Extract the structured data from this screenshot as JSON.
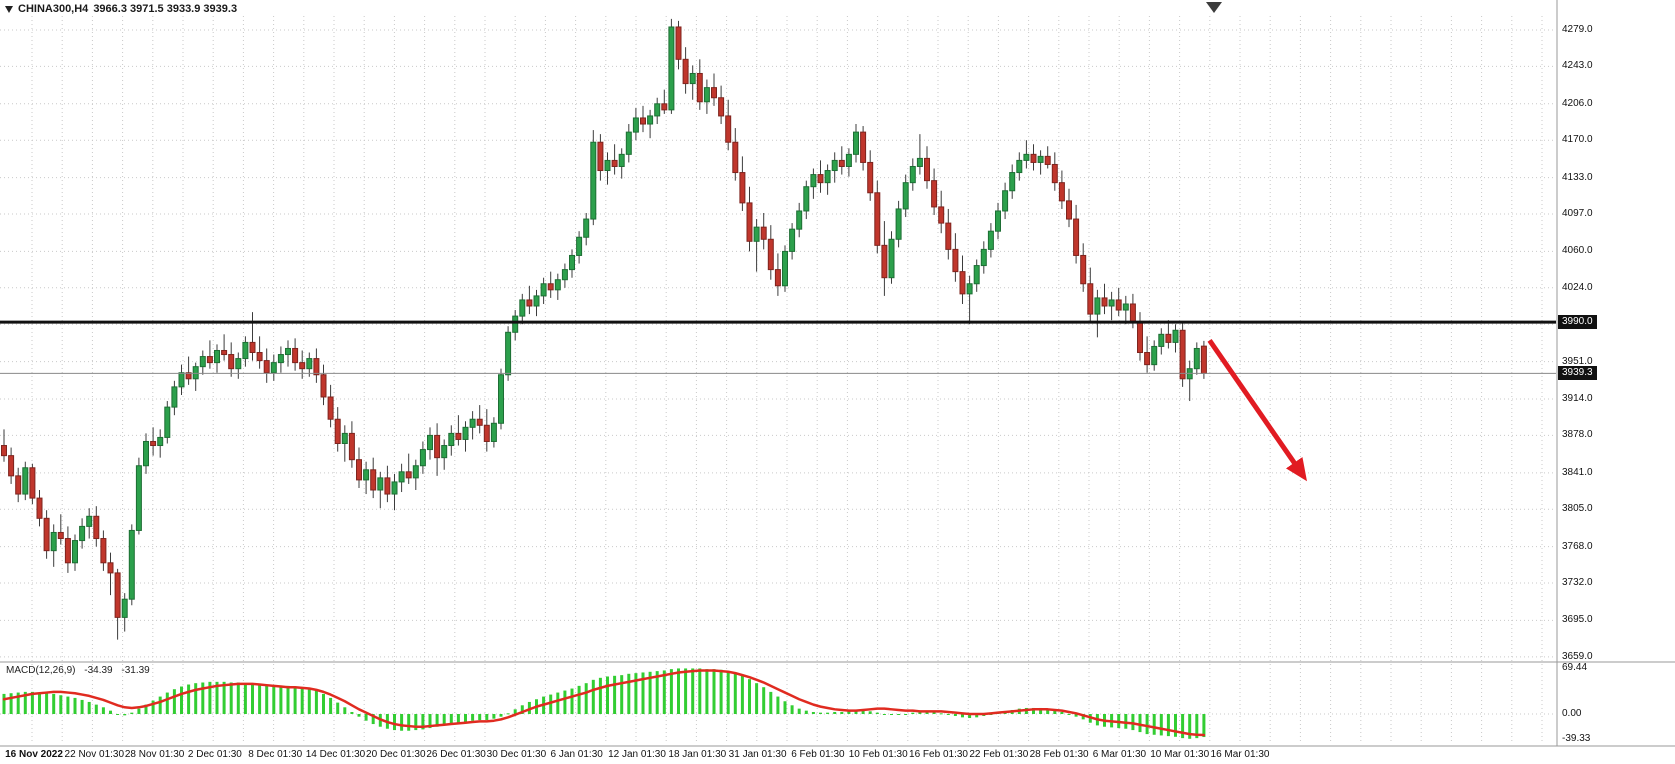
{
  "header": {
    "symbol_timeframe": "CHINA300,H4",
    "ohlc": "3966.3 3971.5 3933.9 3939.3"
  },
  "chart_data": {
    "type": "candlestick",
    "title": "CHINA300,H4",
    "timeframe": "H4",
    "ohlc_display": {
      "open": 3966.3,
      "high": 3971.5,
      "low": 3933.9,
      "close": 3939.3
    },
    "colors": {
      "background": "#ffffff",
      "grid": "#c9c9c9",
      "bull": "#2ca04c",
      "bull_border": "#1d6e34",
      "bear": "#c0362c",
      "bear_border": "#7e241e",
      "wick": "#3c3c3c",
      "hline": "#111111",
      "bid_line": "#8a8a8a",
      "macd_histogram": "#32cd32",
      "macd_signal": "#e02b20",
      "arrow": "#e11b22",
      "axis_text": "#111111",
      "badge_bg": "#111111",
      "badge_text": "#ffffff",
      "separator": "#9a9a9a",
      "shift_marker": "#3c3c3c"
    },
    "price_axis": {
      "grid_values": [
        4279,
        4243,
        4206,
        4170,
        4133,
        4097,
        4060,
        4024,
        3988,
        3951,
        3914,
        3878,
        3841,
        3805,
        3768,
        3732,
        3695,
        3659
      ],
      "labels": [
        {
          "value": 4279,
          "text": "4279.0"
        },
        {
          "value": 4243,
          "text": "4243.0"
        },
        {
          "value": 4206,
          "text": "4206.0"
        },
        {
          "value": 4170,
          "text": "4170.0"
        },
        {
          "value": 4133,
          "text": "4133.0"
        },
        {
          "value": 4097,
          "text": "4097.0"
        },
        {
          "value": 4060,
          "text": "4060.0"
        },
        {
          "value": 4024,
          "text": "4024.0"
        },
        {
          "value": 3951,
          "text": "3951.0"
        },
        {
          "value": 3914,
          "text": "3914.0"
        },
        {
          "value": 3878,
          "text": "3878.0"
        },
        {
          "value": 3841,
          "text": "3841.0"
        },
        {
          "value": 3805,
          "text": "3805.0"
        },
        {
          "value": 3768,
          "text": "3768.0"
        },
        {
          "value": 3732,
          "text": "3732.0"
        },
        {
          "value": 3695,
          "text": "3695.0"
        },
        {
          "value": 3659,
          "text": "3659.0"
        }
      ],
      "top": 4279.0,
      "bottom": 3659.0
    },
    "hline": {
      "value": 3990.0,
      "label": "3990.0"
    },
    "bid": {
      "value": 3939.3,
      "label": "3939.3"
    },
    "time_labels": [
      "16 Nov 2022",
      "22 Nov 01:30",
      "28 Nov 01:30",
      "2 Dec 01:30",
      "8 Dec 01:30",
      "14 Dec 01:30",
      "20 Dec 01:30",
      "26 Dec 01:30",
      "30 Dec 01:30",
      "6 Jan 01:30",
      "12 Jan 01:30",
      "18 Jan 01:30",
      "31 Jan 01:30",
      "6 Feb 01:30",
      "10 Feb 01:30",
      "16 Feb 01:30",
      "22 Feb 01:30",
      "28 Feb 01:30",
      "6 Mar 01:30",
      "10 Mar 01:30",
      "16 Mar 01:30"
    ],
    "candles": [
      [
        3868,
        3884,
        3852,
        3858
      ],
      [
        3858,
        3866,
        3830,
        3838
      ],
      [
        3838,
        3846,
        3812,
        3820
      ],
      [
        3820,
        3852,
        3814,
        3846
      ],
      [
        3846,
        3850,
        3810,
        3816
      ],
      [
        3816,
        3824,
        3788,
        3796
      ],
      [
        3796,
        3804,
        3756,
        3764
      ],
      [
        3764,
        3790,
        3748,
        3782
      ],
      [
        3782,
        3800,
        3770,
        3776
      ],
      [
        3776,
        3788,
        3742,
        3752
      ],
      [
        3752,
        3780,
        3744,
        3774
      ],
      [
        3774,
        3796,
        3766,
        3788
      ],
      [
        3788,
        3806,
        3776,
        3798
      ],
      [
        3798,
        3808,
        3768,
        3776
      ],
      [
        3776,
        3784,
        3744,
        3752
      ],
      [
        3752,
        3762,
        3720,
        3742
      ],
      [
        3742,
        3746,
        3676,
        3698
      ],
      [
        3698,
        3722,
        3684,
        3716
      ],
      [
        3716,
        3790,
        3710,
        3784
      ],
      [
        3784,
        3856,
        3780,
        3848
      ],
      [
        3848,
        3880,
        3840,
        3872
      ],
      [
        3872,
        3886,
        3858,
        3868
      ],
      [
        3868,
        3884,
        3856,
        3876
      ],
      [
        3876,
        3912,
        3870,
        3906
      ],
      [
        3906,
        3932,
        3898,
        3926
      ],
      [
        3926,
        3948,
        3918,
        3940
      ],
      [
        3940,
        3956,
        3928,
        3934
      ],
      [
        3934,
        3950,
        3922,
        3946
      ],
      [
        3946,
        3962,
        3938,
        3956
      ],
      [
        3956,
        3972,
        3944,
        3950
      ],
      [
        3950,
        3968,
        3940,
        3962
      ],
      [
        3962,
        3978,
        3952,
        3958
      ],
      [
        3958,
        3970,
        3936,
        3944
      ],
      [
        3944,
        3960,
        3934,
        3954
      ],
      [
        3954,
        3976,
        3946,
        3970
      ],
      [
        3970,
        4000,
        3952,
        3960
      ],
      [
        3960,
        3976,
        3944,
        3952
      ],
      [
        3952,
        3964,
        3930,
        3940
      ],
      [
        3940,
        3958,
        3932,
        3950
      ],
      [
        3950,
        3966,
        3940,
        3958
      ],
      [
        3958,
        3972,
        3946,
        3964
      ],
      [
        3964,
        3974,
        3942,
        3950
      ],
      [
        3950,
        3962,
        3934,
        3944
      ],
      [
        3944,
        3960,
        3936,
        3954
      ],
      [
        3954,
        3964,
        3930,
        3938
      ],
      [
        3938,
        3948,
        3908,
        3916
      ],
      [
        3916,
        3928,
        3886,
        3894
      ],
      [
        3894,
        3906,
        3862,
        3870
      ],
      [
        3870,
        3888,
        3852,
        3880
      ],
      [
        3880,
        3892,
        3846,
        3854
      ],
      [
        3854,
        3866,
        3826,
        3834
      ],
      [
        3834,
        3852,
        3820,
        3844
      ],
      [
        3844,
        3856,
        3816,
        3824
      ],
      [
        3824,
        3842,
        3806,
        3836
      ],
      [
        3836,
        3848,
        3812,
        3820
      ],
      [
        3820,
        3840,
        3804,
        3832
      ],
      [
        3832,
        3850,
        3822,
        3842
      ],
      [
        3842,
        3860,
        3830,
        3836
      ],
      [
        3836,
        3854,
        3824,
        3848
      ],
      [
        3848,
        3872,
        3840,
        3864
      ],
      [
        3864,
        3886,
        3854,
        3878
      ],
      [
        3878,
        3890,
        3838,
        3856
      ],
      [
        3856,
        3874,
        3844,
        3868
      ],
      [
        3868,
        3888,
        3858,
        3880
      ],
      [
        3880,
        3898,
        3868,
        3874
      ],
      [
        3874,
        3892,
        3862,
        3886
      ],
      [
        3886,
        3902,
        3874,
        3894
      ],
      [
        3894,
        3908,
        3880,
        3888
      ],
      [
        3888,
        3904,
        3862,
        3872
      ],
      [
        3872,
        3896,
        3866,
        3890
      ],
      [
        3890,
        3944,
        3884,
        3938
      ],
      [
        3938,
        3986,
        3932,
        3980
      ],
      [
        3980,
        4002,
        3972,
        3996
      ],
      [
        3996,
        4018,
        3988,
        4012
      ],
      [
        4012,
        4026,
        3998,
        4006
      ],
      [
        4006,
        4022,
        3996,
        4016
      ],
      [
        4016,
        4034,
        4008,
        4028
      ],
      [
        4028,
        4040,
        4014,
        4022
      ],
      [
        4022,
        4038,
        4012,
        4032
      ],
      [
        4032,
        4048,
        4024,
        4042
      ],
      [
        4042,
        4062,
        4034,
        4056
      ],
      [
        4056,
        4080,
        4048,
        4074
      ],
      [
        4074,
        4098,
        4066,
        4092
      ],
      [
        4092,
        4180,
        4086,
        4168
      ],
      [
        4168,
        4176,
        4130,
        4140
      ],
      [
        4140,
        4158,
        4126,
        4150
      ],
      [
        4150,
        4166,
        4136,
        4144
      ],
      [
        4144,
        4162,
        4132,
        4156
      ],
      [
        4156,
        4186,
        4148,
        4178
      ],
      [
        4178,
        4202,
        4170,
        4192
      ],
      [
        4192,
        4204,
        4178,
        4186
      ],
      [
        4186,
        4200,
        4172,
        4194
      ],
      [
        4194,
        4212,
        4186,
        4206
      ],
      [
        4206,
        4220,
        4196,
        4200
      ],
      [
        4200,
        4290,
        4196,
        4282
      ],
      [
        4282,
        4288,
        4240,
        4250
      ],
      [
        4250,
        4262,
        4216,
        4226
      ],
      [
        4226,
        4244,
        4210,
        4236
      ],
      [
        4236,
        4250,
        4200,
        4208
      ],
      [
        4208,
        4230,
        4196,
        4222
      ],
      [
        4222,
        4236,
        4204,
        4212
      ],
      [
        4212,
        4224,
        4186,
        4194
      ],
      [
        4194,
        4210,
        4160,
        4168
      ],
      [
        4168,
        4182,
        4130,
        4138
      ],
      [
        4138,
        4154,
        4100,
        4108
      ],
      [
        4108,
        4124,
        4060,
        4070
      ],
      [
        4070,
        4092,
        4040,
        4084
      ],
      [
        4084,
        4098,
        4062,
        4072
      ],
      [
        4072,
        4086,
        4032,
        4042
      ],
      [
        4042,
        4058,
        4016,
        4026
      ],
      [
        4026,
        4066,
        4020,
        4060
      ],
      [
        4060,
        4088,
        4052,
        4082
      ],
      [
        4082,
        4108,
        4074,
        4100
      ],
      [
        4100,
        4130,
        4092,
        4124
      ],
      [
        4124,
        4142,
        4112,
        4136
      ],
      [
        4136,
        4150,
        4118,
        4128
      ],
      [
        4128,
        4146,
        4116,
        4140
      ],
      [
        4140,
        4158,
        4128,
        4150
      ],
      [
        4150,
        4164,
        4136,
        4144
      ],
      [
        4144,
        4162,
        4134,
        4156
      ],
      [
        4156,
        4186,
        4148,
        4178
      ],
      [
        4178,
        4184,
        4140,
        4148
      ],
      [
        4148,
        4160,
        4110,
        4118
      ],
      [
        4118,
        4130,
        4058,
        4066
      ],
      [
        4066,
        4090,
        4016,
        4034
      ],
      [
        4034,
        4080,
        4028,
        4072
      ],
      [
        4072,
        4110,
        4064,
        4102
      ],
      [
        4102,
        4136,
        4094,
        4128
      ],
      [
        4128,
        4152,
        4120,
        4144
      ],
      [
        4144,
        4176,
        4136,
        4152
      ],
      [
        4152,
        4164,
        4122,
        4130
      ],
      [
        4130,
        4142,
        4096,
        4104
      ],
      [
        4104,
        4120,
        4078,
        4088
      ],
      [
        4088,
        4102,
        4052,
        4062
      ],
      [
        4062,
        4078,
        4030,
        4040
      ],
      [
        4040,
        4056,
        4008,
        4018
      ],
      [
        4018,
        4036,
        3988,
        4028
      ],
      [
        4028,
        4052,
        4020,
        4046
      ],
      [
        4046,
        4070,
        4038,
        4062
      ],
      [
        4062,
        4088,
        4054,
        4080
      ],
      [
        4080,
        4108,
        4072,
        4100
      ],
      [
        4100,
        4128,
        4092,
        4120
      ],
      [
        4120,
        4146,
        4112,
        4138
      ],
      [
        4138,
        4158,
        4130,
        4150
      ],
      [
        4150,
        4170,
        4142,
        4156
      ],
      [
        4156,
        4166,
        4140,
        4148
      ],
      [
        4148,
        4160,
        4136,
        4154
      ],
      [
        4154,
        4164,
        4142,
        4146
      ],
      [
        4146,
        4158,
        4120,
        4128
      ],
      [
        4128,
        4140,
        4102,
        4110
      ],
      [
        4110,
        4122,
        4084,
        4092
      ],
      [
        4092,
        4106,
        4048,
        4056
      ],
      [
        4056,
        4068,
        4020,
        4028
      ],
      [
        4028,
        4044,
        3990,
        3998
      ],
      [
        3998,
        4022,
        3975,
        4014
      ],
      [
        4014,
        4028,
        3998,
        4006
      ],
      [
        4006,
        4020,
        3992,
        4012
      ],
      [
        4012,
        4024,
        3996,
        4002
      ],
      [
        4002,
        4016,
        3988,
        4008
      ],
      [
        4008,
        4018,
        3984,
        3990
      ],
      [
        3990,
        4000,
        3952,
        3960
      ],
      [
        3960,
        3976,
        3940,
        3948
      ],
      [
        3948,
        3972,
        3942,
        3966
      ],
      [
        3966,
        3984,
        3958,
        3978
      ],
      [
        3978,
        3992,
        3964,
        3970
      ],
      [
        3970,
        3988,
        3960,
        3982
      ],
      [
        3982,
        3990,
        3926,
        3934
      ],
      [
        3934,
        3952,
        3912,
        3944
      ],
      [
        3944,
        3970,
        3938,
        3964
      ],
      [
        3966.3,
        3971.5,
        3933.9,
        3939.3
      ]
    ],
    "annotation": {
      "type": "arrow",
      "from": {
        "bar": 169.8,
        "price": 3972
      },
      "to": {
        "bar": 183,
        "price": 3838
      }
    },
    "macd": {
      "label": "MACD(12,26,9)",
      "main_value": "-34.39",
      "signal_value": "-31.39",
      "scale_labels": [
        "69.44",
        "0.00",
        "-39.33"
      ],
      "histogram": [
        30,
        31,
        32,
        33,
        33,
        32,
        31,
        30,
        28,
        26,
        24,
        21,
        18,
        14,
        10,
        5,
        0,
        -2,
        2,
        8,
        14,
        20,
        26,
        32,
        37,
        41,
        44,
        46,
        47,
        48,
        48,
        48,
        47,
        47,
        46,
        46,
        45,
        44,
        43,
        42,
        42,
        41,
        40,
        38,
        35,
        30,
        24,
        17,
        10,
        3,
        -4,
        -10,
        -15,
        -19,
        -22,
        -24,
        -25,
        -25,
        -24,
        -23,
        -21,
        -19,
        -17,
        -15,
        -13,
        -12,
        -10,
        -9,
        -9,
        -7,
        -4,
        1,
        7,
        13,
        18,
        22,
        26,
        29,
        32,
        35,
        38,
        42,
        46,
        51,
        54,
        56,
        57,
        58,
        60,
        61,
        62,
        63,
        64,
        65,
        67,
        68,
        68,
        68,
        68,
        67,
        67,
        66,
        64,
        61,
        57,
        52,
        46,
        40,
        33,
        26,
        19,
        13,
        8,
        5,
        3,
        2,
        2,
        3,
        3,
        4,
        5,
        5,
        4,
        2,
        0,
        -1,
        -1,
        0,
        2,
        4,
        4,
        3,
        1,
        -1,
        -3,
        -5,
        -6,
        -5,
        -3,
        -1,
        2,
        4,
        6,
        8,
        9,
        9,
        9,
        8,
        6,
        3,
        0,
        -4,
        -8,
        -13,
        -17,
        -19,
        -20,
        -21,
        -22,
        -24,
        -27,
        -30,
        -31,
        -32,
        -33,
        -34,
        -36,
        -37,
        -36,
        -34.39
      ],
      "signal": [
        22,
        24,
        26,
        28,
        30,
        31,
        32,
        33,
        33,
        32,
        31,
        29,
        27,
        24,
        21,
        17,
        13,
        10,
        9,
        10,
        12,
        15,
        18,
        22,
        26,
        30,
        33,
        36,
        38,
        40,
        42,
        43,
        44,
        45,
        45,
        45,
        44,
        43,
        42,
        41,
        40,
        40,
        39,
        38,
        36,
        33,
        29,
        24,
        19,
        13,
        7,
        2,
        -3,
        -8,
        -12,
        -15,
        -17,
        -18,
        -19,
        -19,
        -18,
        -17,
        -16,
        -15,
        -14,
        -13,
        -12,
        -11,
        -11,
        -10,
        -8,
        -5,
        -1,
        3,
        7,
        11,
        14,
        17,
        20,
        23,
        26,
        29,
        32,
        36,
        39,
        42,
        44,
        46,
        48,
        50,
        52,
        54,
        56,
        58,
        60,
        62,
        63,
        64,
        65,
        65,
        65,
        64,
        63,
        61,
        58,
        55,
        51,
        47,
        42,
        37,
        32,
        27,
        22,
        18,
        14,
        11,
        9,
        7,
        6,
        5,
        5,
        6,
        7,
        8,
        8,
        7,
        6,
        5,
        5,
        4,
        4,
        4,
        4,
        3,
        2,
        1,
        0,
        0,
        0,
        1,
        2,
        3,
        4,
        5,
        6,
        7,
        7,
        7,
        6,
        5,
        3,
        1,
        -2,
        -5,
        -8,
        -10,
        -11,
        -12,
        -13,
        -14,
        -16,
        -18,
        -20,
        -22,
        -24,
        -26,
        -28,
        -30,
        -31,
        -31.39
      ]
    }
  }
}
